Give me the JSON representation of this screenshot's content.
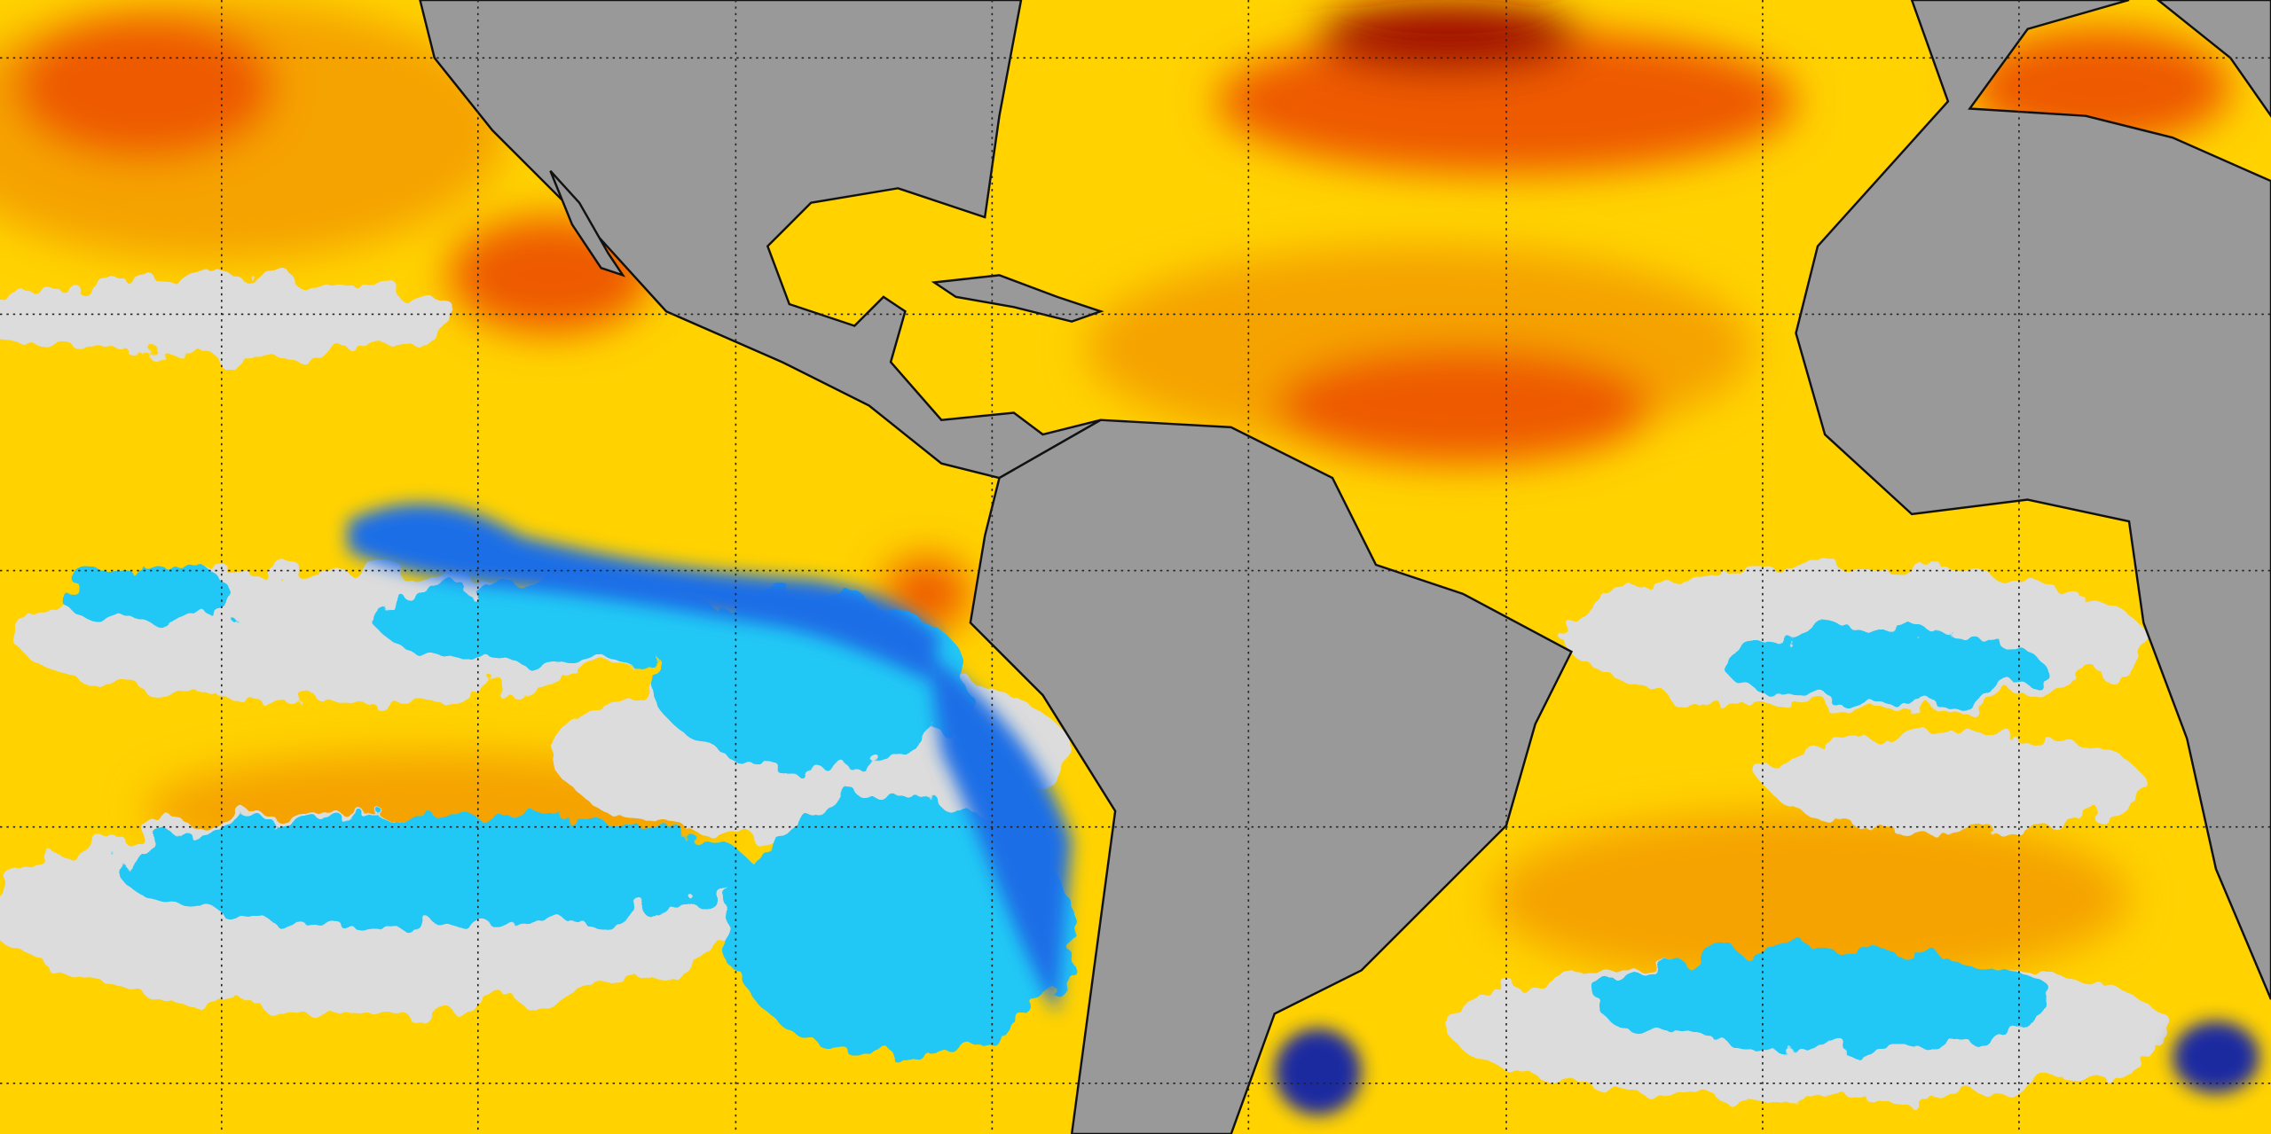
{
  "map": {
    "grid": "on",
    "grid_style": "dotted",
    "colors": {
      "land": "#999999",
      "coastline": "#111111",
      "ocean_warm": "#ffd200",
      "ocean_warmer": "#f5a300",
      "ocean_hot": "#ee5a00",
      "ocean_hottest": "#a01000",
      "ocean_neutral": "#dcdcdc",
      "ocean_cool": "#22c8f5",
      "ocean_cold": "#1e6ee6",
      "ocean_coldest": "#1a2aa0",
      "grid": "#222222"
    }
  }
}
